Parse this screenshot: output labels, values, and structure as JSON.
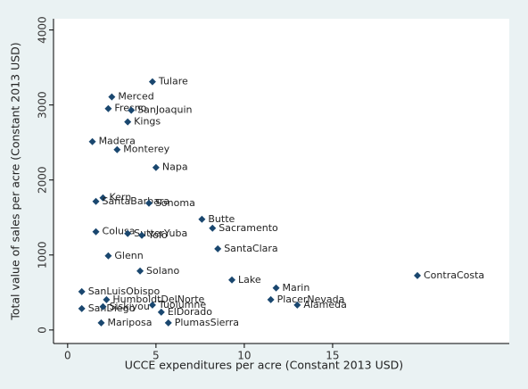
{
  "chart_data": {
    "type": "scatter",
    "x_label": "UCCE expenditures per acre (Constant 2013 USD)",
    "y_label": "Total value of sales per acre (Constant 2013 USD)",
    "xlim": [
      -0.8,
      25
    ],
    "ylim": [
      -180,
      4150
    ],
    "xticks": [
      0,
      5,
      10,
      15
    ],
    "yticks": [
      0,
      1000,
      2000,
      3000,
      4000
    ],
    "color": "#1a476f",
    "labels": [
      "Tulare",
      "Merced",
      "Fresno",
      "SanJoaquin",
      "Kings",
      "Madera",
      "Monterey",
      "Napa",
      "Kern",
      "SantaBarbara",
      "Sonoma",
      "Butte",
      "Sacramento",
      "Colusa",
      "SutterYuba",
      "Yolo",
      "SantaClara",
      "Glenn",
      "Solano",
      "ContraCosta",
      "Lake",
      "Marin",
      "SanLuisObispo",
      "PlacerNevada",
      "Alameda",
      "HumboldtDelNorte",
      "SanDiego",
      "Siskiyou",
      "Tuolumne",
      "ElDorado",
      "Mariposa",
      "PlumasSierra"
    ],
    "x": [
      4.8,
      2.5,
      2.3,
      3.6,
      3.4,
      1.4,
      2.8,
      5.0,
      2.0,
      1.6,
      4.6,
      7.6,
      8.2,
      1.6,
      3.4,
      4.2,
      8.5,
      2.3,
      4.1,
      19.8,
      9.3,
      11.8,
      0.8,
      11.5,
      13.0,
      2.2,
      0.8,
      2.0,
      4.8,
      5.3,
      1.9,
      5.7
    ],
    "values": [
      3310,
      3107,
      2952,
      2929,
      2774,
      2512,
      2405,
      2167,
      1762,
      1714,
      1690,
      1476,
      1357,
      1310,
      1286,
      1262,
      1083,
      988,
      786,
      726,
      667,
      560,
      512,
      405,
      333,
      405,
      286,
      310,
      333,
      238,
      95,
      95
    ]
  }
}
